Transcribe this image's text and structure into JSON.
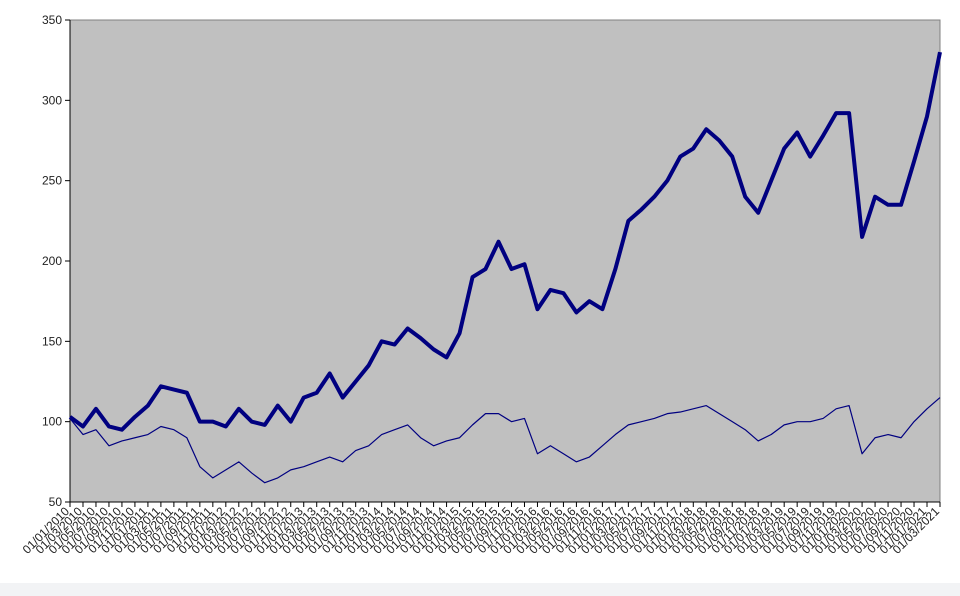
{
  "chart_data": {
    "type": "line",
    "categories": [
      "01/01/2010",
      "01/03/2010",
      "01/05/2010",
      "01/07/2010",
      "01/09/2010",
      "01/11/2010",
      "01/01/2011",
      "01/03/2011",
      "01/05/2011",
      "01/07/2011",
      "01/09/2011",
      "01/11/2011",
      "01/01/2012",
      "01/03/2012",
      "01/05/2012",
      "01/07/2012",
      "01/09/2012",
      "01/11/2012",
      "01/01/2013",
      "01/03/2013",
      "01/05/2013",
      "01/07/2013",
      "01/09/2013",
      "01/11/2013",
      "01/01/2014",
      "01/03/2014",
      "01/05/2014",
      "01/07/2014",
      "01/09/2014",
      "01/11/2014",
      "01/01/2015",
      "01/03/2015",
      "01/05/2015",
      "01/07/2015",
      "01/09/2015",
      "01/11/2015",
      "01/01/2016",
      "01/03/2016",
      "01/05/2016",
      "01/07/2016",
      "01/09/2016",
      "01/11/2016",
      "01/01/2017",
      "01/03/2017",
      "01/05/2017",
      "01/07/2017",
      "01/09/2017",
      "01/11/2017",
      "01/01/2018",
      "01/03/2018",
      "01/05/2018",
      "01/07/2018",
      "01/09/2018",
      "01/11/2018",
      "01/01/2019",
      "01/03/2019",
      "01/05/2019",
      "01/07/2019",
      "01/09/2019",
      "01/11/2019",
      "01/01/2020",
      "01/03/2020",
      "01/05/2020",
      "01/07/2020",
      "01/09/2020",
      "01/11/2020",
      "01/01/2021",
      "01/03/2021"
    ],
    "series": [
      {
        "color": "#000080",
        "values": [
          103,
          97,
          108,
          97,
          95,
          103,
          110,
          122,
          120,
          118,
          100,
          100,
          97,
          108,
          100,
          98,
          110,
          100,
          115,
          118,
          130,
          115,
          125,
          135,
          150,
          148,
          158,
          152,
          145,
          140,
          155,
          190,
          195,
          212,
          195,
          198,
          170,
          182,
          180,
          168,
          175,
          170,
          195,
          225,
          232,
          240,
          250,
          265,
          270,
          282,
          275,
          265,
          240,
          230,
          250,
          270,
          280,
          265,
          278,
          292,
          292,
          215,
          240,
          235,
          235,
          262,
          290,
          330
        ]
      },
      {
        "color": "#000080",
        "values": [
          102,
          92,
          95,
          85,
          88,
          90,
          92,
          97,
          95,
          90,
          72,
          65,
          70,
          75,
          68,
          62,
          65,
          70,
          72,
          75,
          78,
          75,
          82,
          85,
          92,
          95,
          98,
          90,
          85,
          88,
          90,
          98,
          105,
          105,
          100,
          102,
          80,
          85,
          80,
          75,
          78,
          85,
          92,
          98,
          100,
          102,
          105,
          106,
          108,
          110,
          105,
          100,
          95,
          88,
          92,
          98,
          100,
          100,
          102,
          108,
          110,
          80,
          90,
          92,
          90,
          100,
          108,
          115
        ]
      }
    ],
    "ylim": [
      50,
      350
    ],
    "yticks": [
      50,
      100,
      150,
      200,
      250,
      300,
      350
    ],
    "plot_background": "#c0c0c0"
  }
}
